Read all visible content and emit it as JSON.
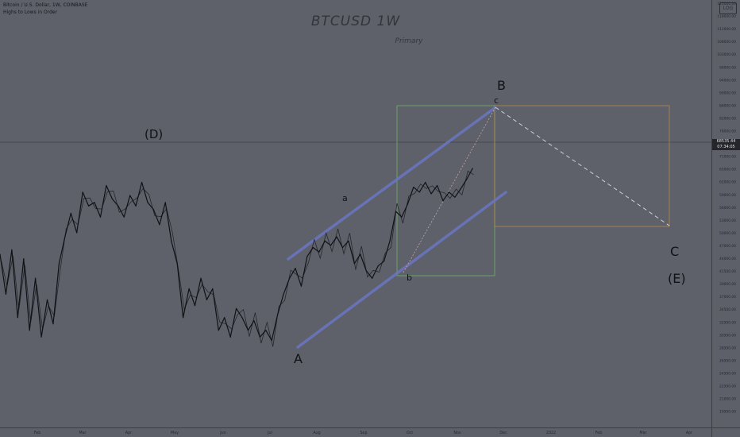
{
  "header": {
    "symbol_line": "Bitcoin / U.S. Dollar, 1W, COINBASE",
    "indicator_line": "Highs to Lows in Order"
  },
  "title": "BTCUSD 1W",
  "subtitle": "Primary",
  "scale_button": "LOG",
  "current_price": {
    "value": "68535.44",
    "countdown": "07:34:05"
  },
  "wave_labels": {
    "D": "(D)",
    "A": "A",
    "a": "a",
    "b": "b",
    "c": "c",
    "B": "B",
    "C": "C",
    "E": "(E)"
  },
  "colors": {
    "background": "#5d6069",
    "price_line": "#111216",
    "channel": "#6977c4",
    "box_green": "#6cb564",
    "box_orange": "#b98847",
    "dashed": "#d0d1d6"
  },
  "chart_data": {
    "type": "line",
    "title": "BTCUSD 1W",
    "subtitle": "Primary",
    "scale": "log",
    "y_axis_labels": [
      "121000.00",
      "118000.00",
      "112000.00",
      "108000.00",
      "103000.00",
      "98000.00",
      "94000.00",
      "90000.00",
      "86000.00",
      "82000.00",
      "78000.00",
      "74000.00",
      "71000.00",
      "65000.00",
      "62000.00",
      "59000.00",
      "56000.00",
      "53000.00",
      "50000.00",
      "47000.00",
      "44000.00",
      "41500.00",
      "39000.00",
      "37000.00",
      "34500.00",
      "32500.00",
      "30500.00",
      "28500.00",
      "26500.00",
      "24500.00",
      "22500.00",
      "21000.00",
      "19500.00"
    ],
    "x_axis_labels": [
      "Feb",
      "Mar",
      "Apr",
      "May",
      "Jun",
      "Jul",
      "Aug",
      "Sep",
      "Oct",
      "Nov",
      "Dec",
      "2022",
      "Feb",
      "Mar",
      "Apr"
    ],
    "series": [
      {
        "values": [
          [
            0,
            45000
          ],
          [
            2,
            37000
          ],
          [
            4,
            46000
          ],
          [
            6,
            33000
          ],
          [
            8,
            44000
          ],
          [
            10,
            31000
          ],
          [
            12,
            40000
          ],
          [
            14,
            30000
          ],
          [
            16,
            36000
          ],
          [
            18,
            32000
          ],
          [
            20,
            43000
          ],
          [
            22,
            49000
          ],
          [
            24,
            55000
          ],
          [
            26,
            50000
          ],
          [
            28,
            61000
          ],
          [
            30,
            57000
          ],
          [
            32,
            58000
          ],
          [
            34,
            54000
          ],
          [
            36,
            63000
          ],
          [
            38,
            59000
          ],
          [
            40,
            57000
          ],
          [
            42,
            54000
          ],
          [
            44,
            60000
          ],
          [
            46,
            57000
          ],
          [
            48,
            64000
          ],
          [
            50,
            58000
          ],
          [
            52,
            56000
          ],
          [
            54,
            52000
          ],
          [
            56,
            58000
          ],
          [
            58,
            48000
          ],
          [
            60,
            43000
          ],
          [
            62,
            33000
          ],
          [
            64,
            38000
          ],
          [
            66,
            35000
          ],
          [
            68,
            40000
          ],
          [
            70,
            36000
          ],
          [
            72,
            38000
          ],
          [
            74,
            31000
          ],
          [
            76,
            33000
          ],
          [
            78,
            30000
          ],
          [
            80,
            34500
          ],
          [
            82,
            33000
          ],
          [
            84,
            31000
          ],
          [
            86,
            32500
          ],
          [
            88,
            30000
          ],
          [
            90,
            31000
          ],
          [
            92,
            29500
          ],
          [
            94,
            33500
          ],
          [
            96,
            37000
          ],
          [
            98,
            40000
          ],
          [
            100,
            42000
          ],
          [
            102,
            38500
          ],
          [
            104,
            44500
          ],
          [
            106,
            46500
          ],
          [
            108,
            45500
          ],
          [
            110,
            48000
          ],
          [
            112,
            47000
          ],
          [
            114,
            49000
          ],
          [
            116,
            46500
          ],
          [
            118,
            48000
          ],
          [
            120,
            43000
          ],
          [
            122,
            45000
          ],
          [
            124,
            41500
          ],
          [
            126,
            40000
          ],
          [
            128,
            42500
          ],
          [
            130,
            43500
          ],
          [
            132,
            48000
          ],
          [
            134,
            55500
          ],
          [
            136,
            54000
          ],
          [
            138,
            57500
          ],
          [
            140,
            62500
          ],
          [
            142,
            61000
          ],
          [
            144,
            64000
          ],
          [
            146,
            60500
          ],
          [
            148,
            63000
          ],
          [
            150,
            58500
          ],
          [
            152,
            61000
          ],
          [
            154,
            59500
          ],
          [
            156,
            62000
          ],
          [
            158,
            65000
          ],
          [
            160,
            68500
          ]
        ]
      }
    ],
    "annotations": [
      "(D)",
      "A",
      "a",
      "b",
      "c",
      "B",
      "C",
      "(E)"
    ],
    "grid": false
  }
}
